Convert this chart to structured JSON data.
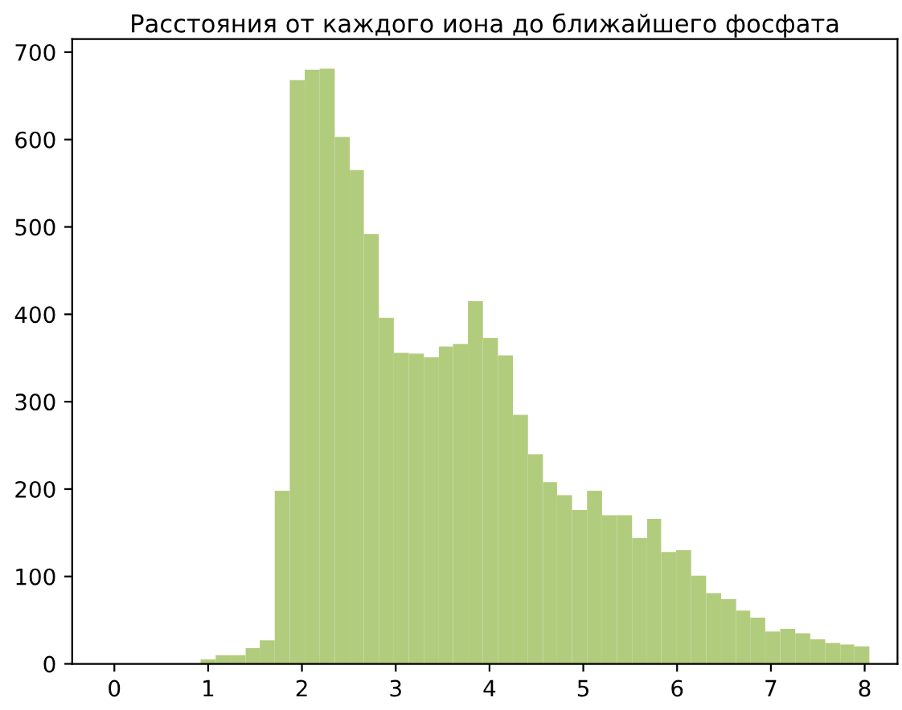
{
  "chart_data": {
    "type": "histogram",
    "title": "Расстояния от каждого иона до ближайшего фосфата",
    "bins": [
      0.92,
      1.08,
      1.24,
      1.4,
      1.55,
      1.71,
      1.87,
      2.03,
      2.19,
      2.35,
      2.51,
      2.66,
      2.82,
      2.98,
      3.14,
      3.3,
      3.46,
      3.61,
      3.77,
      3.93,
      4.09,
      4.25,
      4.41,
      4.57,
      4.72,
      4.88,
      5.04,
      5.2,
      5.36,
      5.52,
      5.68,
      5.83,
      5.99,
      6.15,
      6.31,
      6.47,
      6.63,
      6.78,
      6.94,
      7.1,
      7.26,
      7.42,
      7.58,
      7.74,
      7.89,
      8.05
    ],
    "values": [
      5,
      10,
      10,
      18,
      27,
      198,
      668,
      680,
      681,
      603,
      565,
      492,
      396,
      356,
      355,
      351,
      363,
      366,
      415,
      373,
      353,
      285,
      240,
      208,
      193,
      176,
      198,
      170,
      170,
      144,
      166,
      128,
      130,
      101,
      81,
      74,
      61,
      53,
      37,
      40,
      35,
      28,
      24,
      22,
      20
    ],
    "color": "#b2cc7e",
    "xlim": [
      -0.45,
      8.35
    ],
    "ylim": [
      0,
      715
    ],
    "xticks": [
      0,
      1,
      2,
      3,
      4,
      5,
      6,
      7,
      8
    ],
    "yticks": [
      0,
      100,
      200,
      300,
      400,
      500,
      600,
      700
    ],
    "grid": false
  }
}
